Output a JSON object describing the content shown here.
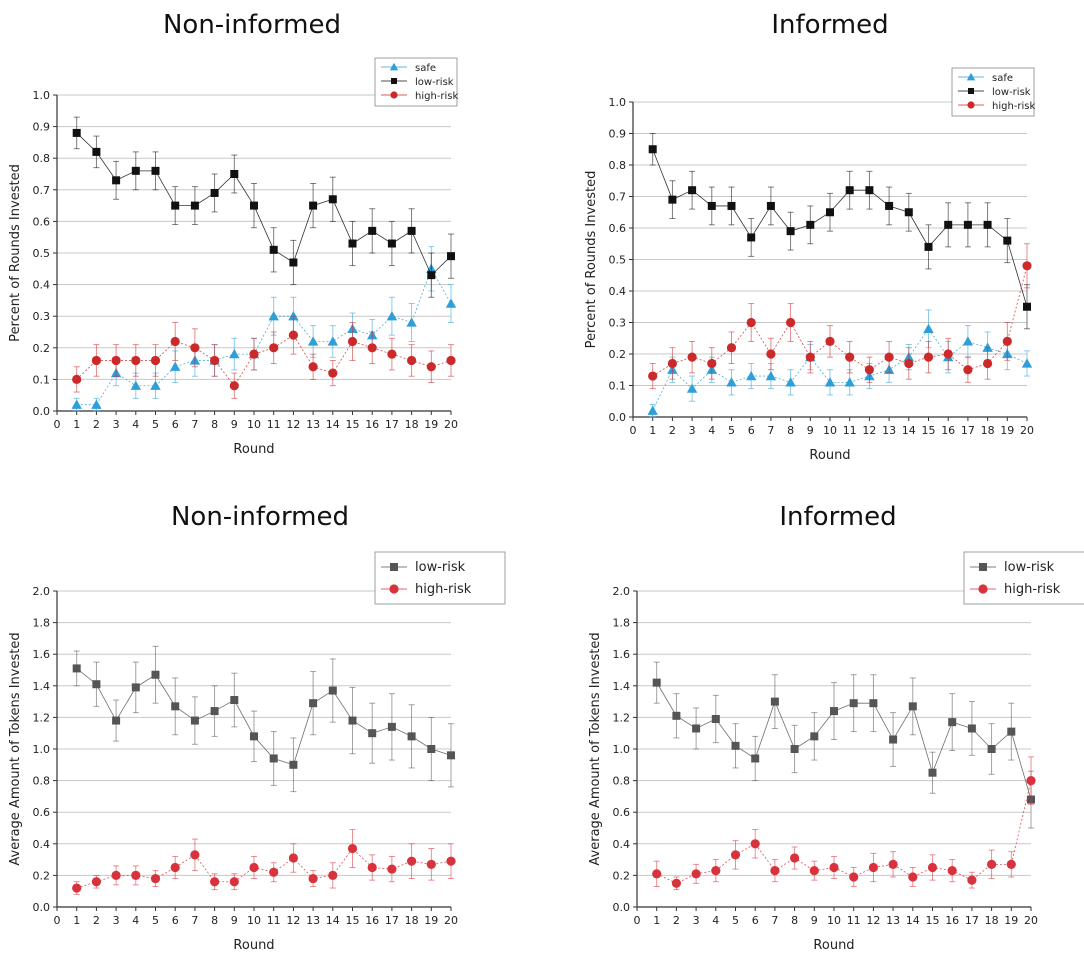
{
  "chart_data": [
    {
      "type": "line",
      "title": "Non-informed",
      "xlabel": "Round",
      "ylabel": "Percent of Rounds Invested",
      "xlim": [
        0,
        20
      ],
      "ylim": [
        0,
        1.0
      ],
      "xticks": [
        "0",
        "1",
        "2",
        "3",
        "4",
        "5",
        "6",
        "7",
        "8",
        "9",
        "10",
        "11",
        "12",
        "13",
        "14",
        "15",
        "16",
        "17",
        "18",
        "19",
        "20"
      ],
      "yticks": [
        "0.0",
        "0.1",
        "0.2",
        "0.3",
        "0.4",
        "0.5",
        "0.6",
        "0.7",
        "0.8",
        "0.9",
        "1.0"
      ],
      "x": [
        1,
        2,
        3,
        4,
        5,
        6,
        7,
        8,
        9,
        10,
        11,
        12,
        13,
        14,
        15,
        16,
        17,
        18,
        19,
        20
      ],
      "series": [
        {
          "name": "safe",
          "color": "#2e9fd8",
          "marker": "triangle",
          "values": [
            0.02,
            0.02,
            0.12,
            0.08,
            0.08,
            0.14,
            0.16,
            0.16,
            0.18,
            0.18,
            0.3,
            0.3,
            0.22,
            0.22,
            0.26,
            0.24,
            0.3,
            0.28,
            0.45,
            0.34
          ],
          "errors": [
            0.02,
            0.02,
            0.04,
            0.04,
            0.04,
            0.05,
            0.05,
            0.05,
            0.05,
            0.05,
            0.06,
            0.06,
            0.05,
            0.05,
            0.05,
            0.05,
            0.06,
            0.06,
            0.07,
            0.06
          ]
        },
        {
          "name": "low-risk",
          "color": "#111111",
          "marker": "square",
          "values": [
            0.88,
            0.82,
            0.73,
            0.76,
            0.76,
            0.65,
            0.65,
            0.69,
            0.75,
            0.65,
            0.51,
            0.47,
            0.65,
            0.67,
            0.53,
            0.57,
            0.53,
            0.57,
            0.43,
            0.49
          ],
          "errors": [
            0.05,
            0.05,
            0.06,
            0.06,
            0.06,
            0.06,
            0.06,
            0.06,
            0.06,
            0.07,
            0.07,
            0.07,
            0.07,
            0.07,
            0.07,
            0.07,
            0.07,
            0.07,
            0.07,
            0.07
          ]
        },
        {
          "name": "high-risk",
          "color": "#cc2a2a",
          "marker": "circle",
          "values": [
            0.1,
            0.16,
            0.16,
            0.16,
            0.16,
            0.22,
            0.2,
            0.16,
            0.08,
            0.18,
            0.2,
            0.24,
            0.14,
            0.12,
            0.22,
            0.2,
            0.18,
            0.16,
            0.14,
            0.16
          ],
          "errors": [
            0.04,
            0.05,
            0.05,
            0.05,
            0.05,
            0.06,
            0.06,
            0.05,
            0.04,
            0.05,
            0.05,
            0.06,
            0.04,
            0.04,
            0.06,
            0.05,
            0.05,
            0.05,
            0.05,
            0.05
          ]
        }
      ],
      "legend": "top-right"
    },
    {
      "type": "line",
      "title": "Informed",
      "xlabel": "Round",
      "ylabel": "Percent of Rounds Invested",
      "xlim": [
        0,
        20
      ],
      "ylim": [
        0,
        1.0
      ],
      "xticks": [
        "0",
        "1",
        "2",
        "3",
        "4",
        "5",
        "6",
        "7",
        "8",
        "9",
        "10",
        "11",
        "12",
        "13",
        "14",
        "15",
        "16",
        "17",
        "18",
        "19",
        "20"
      ],
      "yticks": [
        "0.0",
        "0.1",
        "0.2",
        "0.3",
        "0.4",
        "0.5",
        "0.6",
        "0.7",
        "0.8",
        "0.9",
        "1.0"
      ],
      "x": [
        1,
        2,
        3,
        4,
        5,
        6,
        7,
        8,
        9,
        10,
        11,
        12,
        13,
        14,
        15,
        16,
        17,
        18,
        19,
        20
      ],
      "series": [
        {
          "name": "safe",
          "color": "#2e9fd8",
          "marker": "triangle",
          "values": [
            0.02,
            0.15,
            0.09,
            0.15,
            0.11,
            0.13,
            0.13,
            0.11,
            0.19,
            0.11,
            0.11,
            0.13,
            0.15,
            0.19,
            0.28,
            0.19,
            0.24,
            0.22,
            0.2,
            0.17
          ],
          "errors": [
            0.02,
            0.04,
            0.04,
            0.04,
            0.04,
            0.04,
            0.04,
            0.04,
            0.04,
            0.04,
            0.04,
            0.04,
            0.04,
            0.04,
            0.06,
            0.05,
            0.05,
            0.05,
            0.05,
            0.04
          ]
        },
        {
          "name": "low-risk",
          "color": "#111111",
          "marker": "square",
          "values": [
            0.85,
            0.69,
            0.72,
            0.67,
            0.67,
            0.57,
            0.67,
            0.59,
            0.61,
            0.65,
            0.72,
            0.72,
            0.67,
            0.65,
            0.54,
            0.61,
            0.61,
            0.61,
            0.56,
            0.35
          ],
          "errors": [
            0.05,
            0.06,
            0.06,
            0.06,
            0.06,
            0.06,
            0.06,
            0.06,
            0.06,
            0.06,
            0.06,
            0.06,
            0.06,
            0.06,
            0.07,
            0.07,
            0.07,
            0.07,
            0.07,
            0.07
          ]
        },
        {
          "name": "high-risk",
          "color": "#cc2a2a",
          "marker": "circle",
          "values": [
            0.13,
            0.17,
            0.19,
            0.17,
            0.22,
            0.3,
            0.2,
            0.3,
            0.19,
            0.24,
            0.19,
            0.15,
            0.19,
            0.17,
            0.19,
            0.2,
            0.15,
            0.17,
            0.24,
            0.48
          ],
          "errors": [
            0.04,
            0.05,
            0.05,
            0.05,
            0.05,
            0.06,
            0.05,
            0.06,
            0.05,
            0.05,
            0.05,
            0.04,
            0.05,
            0.05,
            0.05,
            0.05,
            0.04,
            0.05,
            0.06,
            0.07
          ]
        }
      ],
      "legend": "top-right"
    },
    {
      "type": "line",
      "title": "Non-informed",
      "xlabel": "Round",
      "ylabel": "Average Amount of Tokens Invested",
      "xlim": [
        0,
        20
      ],
      "ylim": [
        0,
        2.0
      ],
      "xticks": [
        "0",
        "1",
        "2",
        "3",
        "4",
        "5",
        "6",
        "7",
        "8",
        "9",
        "10",
        "11",
        "12",
        "13",
        "14",
        "15",
        "16",
        "17",
        "18",
        "19",
        "20"
      ],
      "yticks": [
        "0.0",
        "0.2",
        "0.4",
        "0.6",
        "0.8",
        "1.0",
        "1.2",
        "1.4",
        "1.6",
        "1.8",
        "2.0"
      ],
      "x": [
        1,
        2,
        3,
        4,
        5,
        6,
        7,
        8,
        9,
        10,
        11,
        12,
        13,
        14,
        15,
        16,
        17,
        18,
        19,
        20
      ],
      "series": [
        {
          "name": "low-risk",
          "color": "#555555",
          "marker": "square",
          "values": [
            1.51,
            1.41,
            1.18,
            1.39,
            1.47,
            1.27,
            1.18,
            1.24,
            1.31,
            1.08,
            0.94,
            0.9,
            1.29,
            1.37,
            1.18,
            1.1,
            1.14,
            1.08,
            1.0,
            0.96
          ],
          "errors": [
            0.11,
            0.14,
            0.13,
            0.16,
            0.18,
            0.18,
            0.15,
            0.16,
            0.17,
            0.16,
            0.17,
            0.17,
            0.2,
            0.2,
            0.21,
            0.19,
            0.21,
            0.2,
            0.2,
            0.2
          ]
        },
        {
          "name": "high-risk",
          "color": "#d8323c",
          "marker": "circle",
          "values": [
            0.12,
            0.16,
            0.2,
            0.2,
            0.18,
            0.25,
            0.33,
            0.16,
            0.16,
            0.25,
            0.22,
            0.31,
            0.18,
            0.2,
            0.37,
            0.25,
            0.24,
            0.29,
            0.27,
            0.29
          ],
          "errors": [
            0.04,
            0.04,
            0.06,
            0.06,
            0.05,
            0.07,
            0.1,
            0.05,
            0.05,
            0.07,
            0.06,
            0.09,
            0.05,
            0.08,
            0.12,
            0.08,
            0.08,
            0.11,
            0.1,
            0.11
          ]
        }
      ],
      "legend": "top-right"
    },
    {
      "type": "line",
      "title": "Informed",
      "xlabel": "Round",
      "ylabel": "Average Amount of Tokens Invested",
      "xlim": [
        0,
        20
      ],
      "ylim": [
        0,
        2.0
      ],
      "xticks": [
        "0",
        "1",
        "2",
        "3",
        "4",
        "5",
        "6",
        "7",
        "8",
        "9",
        "10",
        "11",
        "12",
        "13",
        "14",
        "15",
        "16",
        "17",
        "18",
        "19",
        "20"
      ],
      "yticks": [
        "0.0",
        "0.2",
        "0.4",
        "0.6",
        "0.8",
        "1.0",
        "1.2",
        "1.4",
        "1.6",
        "1.8",
        "2.0"
      ],
      "x": [
        1,
        2,
        3,
        4,
        5,
        6,
        7,
        8,
        9,
        10,
        11,
        12,
        13,
        14,
        15,
        16,
        17,
        18,
        19,
        20
      ],
      "series": [
        {
          "name": "low-risk",
          "color": "#555555",
          "marker": "square",
          "values": [
            1.42,
            1.21,
            1.13,
            1.19,
            1.02,
            0.94,
            1.3,
            1.0,
            1.08,
            1.24,
            1.29,
            1.29,
            1.06,
            1.27,
            0.85,
            1.17,
            1.13,
            1.0,
            1.11,
            0.68
          ],
          "errors": [
            0.13,
            0.14,
            0.13,
            0.15,
            0.14,
            0.14,
            0.17,
            0.15,
            0.15,
            0.18,
            0.18,
            0.18,
            0.17,
            0.18,
            0.13,
            0.18,
            0.17,
            0.16,
            0.18,
            0.18
          ]
        },
        {
          "name": "high-risk",
          "color": "#d8323c",
          "marker": "circle",
          "values": [
            0.21,
            0.15,
            0.21,
            0.23,
            0.33,
            0.4,
            0.23,
            0.31,
            0.23,
            0.25,
            0.19,
            0.25,
            0.27,
            0.19,
            0.25,
            0.23,
            0.17,
            0.27,
            0.27,
            0.8
          ],
          "errors": [
            0.08,
            0.04,
            0.06,
            0.07,
            0.09,
            0.09,
            0.07,
            0.07,
            0.06,
            0.07,
            0.06,
            0.09,
            0.08,
            0.06,
            0.08,
            0.07,
            0.05,
            0.09,
            0.08,
            0.15
          ]
        }
      ],
      "legend": "top-right"
    }
  ]
}
